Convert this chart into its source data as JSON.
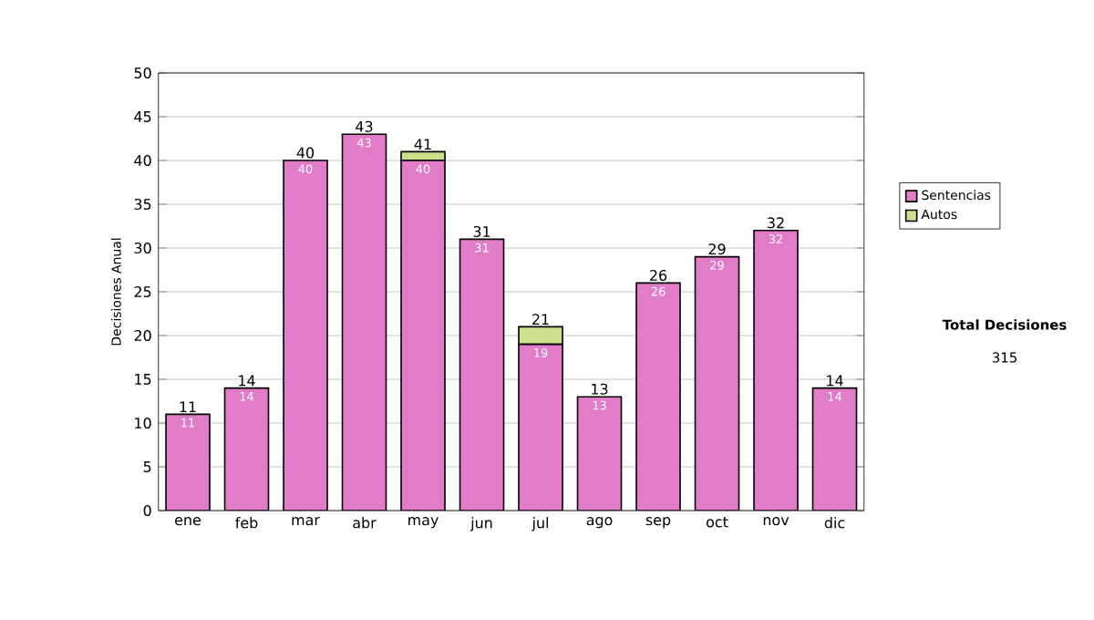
{
  "chart_data": {
    "type": "bar",
    "stacked": true,
    "ylabel": "Decisiones Anual",
    "categories": [
      "ene",
      "feb",
      "mar",
      "abr",
      "may",
      "jun",
      "jul",
      "ago",
      "sep",
      "oct",
      "nov",
      "dic"
    ],
    "series": [
      {
        "name": "Sentencias",
        "color": "#e07cc8",
        "values": [
          11,
          14,
          40,
          43,
          40,
          31,
          19,
          13,
          26,
          29,
          32,
          14
        ],
        "value_labels": [
          "11",
          "14",
          "40",
          "43",
          "40",
          "31",
          "19",
          "13",
          "26",
          "29",
          "32",
          "14"
        ]
      },
      {
        "name": "Autos",
        "color": "#cce08c",
        "values": [
          0,
          0,
          0,
          0,
          1,
          0,
          2,
          0,
          0,
          0,
          0,
          0
        ]
      }
    ],
    "totals": [
      "11",
      "14",
      "40",
      "43",
      "41",
      "31",
      "21",
      "13",
      "26",
      "29",
      "32",
      "14"
    ],
    "ylim": [
      0,
      50
    ],
    "yticks": [
      0,
      5,
      10,
      15,
      20,
      25,
      30,
      35,
      40,
      45,
      50
    ],
    "grid": "y",
    "legend": "right",
    "annotations": [
      "Total Decisiones",
      "315"
    ]
  }
}
